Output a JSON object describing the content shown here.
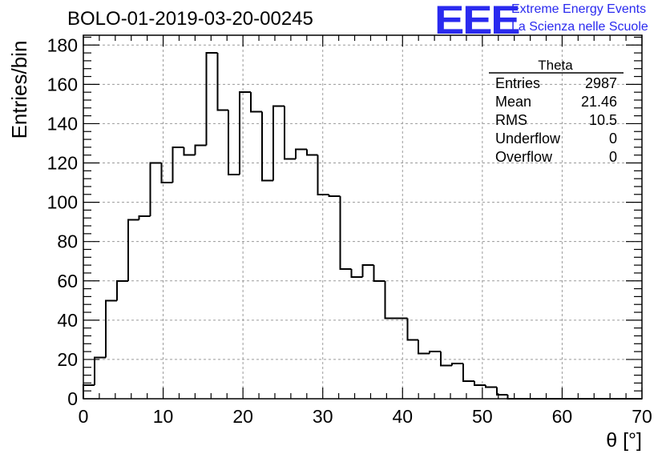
{
  "header": {
    "title": "BOLO-01-2019-03-20-00245",
    "logo_mark": "EEE",
    "logo_line1": "Extreme Energy Events",
    "logo_line2": "La Scienza nelle Scuole"
  },
  "stats_box": {
    "name": "Theta",
    "rows": [
      {
        "label": "Entries",
        "value": "2987"
      },
      {
        "label": "Mean",
        "value": "21.46"
      },
      {
        "label": "RMS",
        "value": "10.5"
      },
      {
        "label": "Underflow",
        "value": "0"
      },
      {
        "label": "Overflow",
        "value": "0"
      }
    ]
  },
  "colors": {
    "line": "#000000",
    "grid": "#9a9a9a",
    "logo": "#2a2aef"
  },
  "chart_data": {
    "type": "bar",
    "style": "step-histogram",
    "title": "BOLO-01-2019-03-20-00245",
    "xlabel": "θ [°]",
    "ylabel": "Entries/bin",
    "xlim": [
      0,
      70
    ],
    "ylim": [
      0,
      185
    ],
    "grid": true,
    "legend": "top-right stats box",
    "xticks": [
      0,
      10,
      20,
      30,
      40,
      50,
      60,
      70
    ],
    "yticks": [
      0,
      20,
      40,
      60,
      80,
      100,
      120,
      140,
      160,
      180
    ],
    "bin_width": 1.4,
    "bin_edges_start": 0,
    "values": [
      7,
      21,
      50,
      60,
      91,
      93,
      120,
      110,
      128,
      124,
      129,
      176,
      147,
      114,
      156,
      146,
      111,
      149,
      122,
      127,
      124,
      104,
      103,
      66,
      62,
      68,
      60,
      41,
      41,
      30,
      23,
      24,
      17,
      18,
      9,
      7,
      6,
      2,
      0,
      0,
      0,
      0,
      0,
      0,
      0,
      0,
      0,
      0,
      0,
      0
    ]
  }
}
